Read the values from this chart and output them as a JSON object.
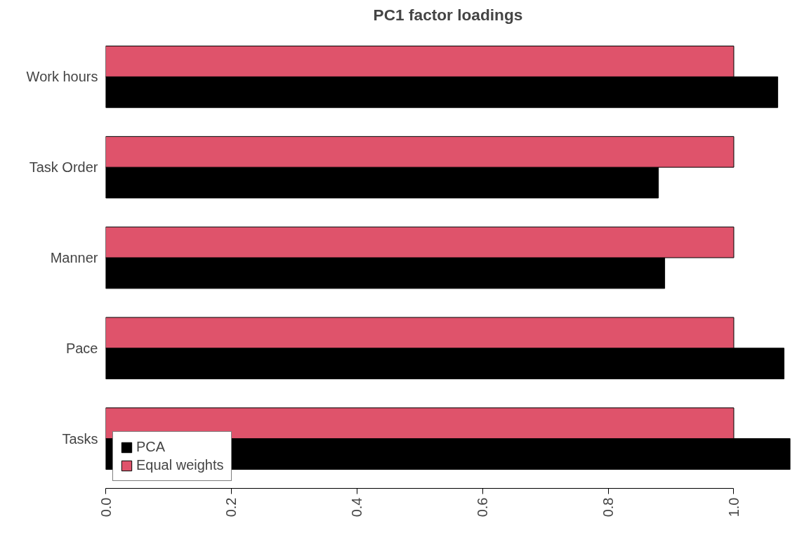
{
  "chart_data": {
    "type": "bar",
    "orientation": "horizontal",
    "title": "PC1 factor loadings",
    "categories": [
      "Work hours",
      "Task Order",
      "Manner",
      "Pace",
      "Tasks"
    ],
    "series": [
      {
        "name": "PCA",
        "color": "#000000",
        "values": [
          1.07,
          0.88,
          0.89,
          1.08,
          1.09
        ]
      },
      {
        "name": "Equal weights",
        "color": "#df536b",
        "values": [
          1.0,
          1.0,
          1.0,
          1.0,
          1.0
        ]
      }
    ],
    "xlim": [
      0,
      1.09
    ],
    "xticks": [
      {
        "value": 0,
        "label": "0.0"
      },
      0.2,
      0.4,
      0.6,
      0.8,
      {
        "value": 1,
        "label": "1.0"
      }
    ],
    "grid": false,
    "legend": "bottom left"
  }
}
